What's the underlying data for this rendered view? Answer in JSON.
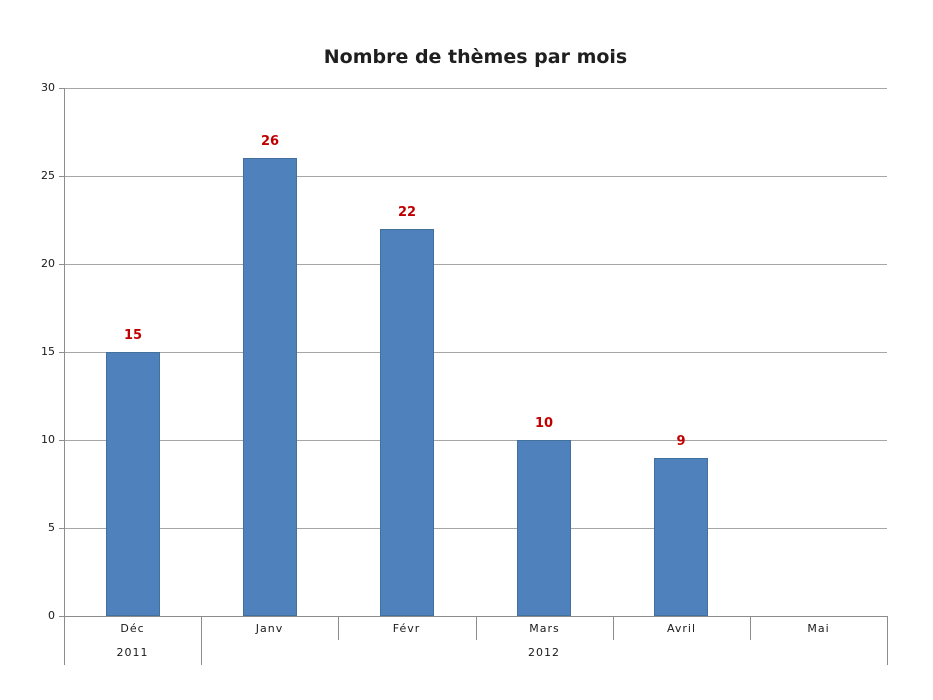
{
  "colors": {
    "bar": "#4F81BD",
    "bar_border": "#41719C",
    "gridline": "#A6A6A6",
    "axis": "#8C8C8C",
    "data_label": "#C00000",
    "title": "#1F1F1F",
    "tick_text": "#1A1A1A",
    "background": "#FFFFFF"
  },
  "chart_data": {
    "type": "bar",
    "title": "Nombre de thèmes par mois",
    "categories": [
      "Déc",
      "Janv",
      "Févr",
      "Mars",
      "Avril",
      "Mai"
    ],
    "values": [
      15,
      26,
      22,
      10,
      9,
      null
    ],
    "data_labels": [
      "15",
      "26",
      "22",
      "10",
      "9",
      ""
    ],
    "year_groups": [
      {
        "label": "2011",
        "start": 0,
        "end": 1
      },
      {
        "label": "2012",
        "start": 1,
        "end": 6
      }
    ],
    "xlabel": "",
    "ylabel": "",
    "ylim": [
      0,
      30
    ],
    "yticks": [
      0,
      5,
      10,
      15,
      20,
      25,
      30
    ],
    "grid": true,
    "legend": "none",
    "data_label_position": "above-bar",
    "data_label_color": "#C00000",
    "bar_color": "#4F81BD"
  }
}
